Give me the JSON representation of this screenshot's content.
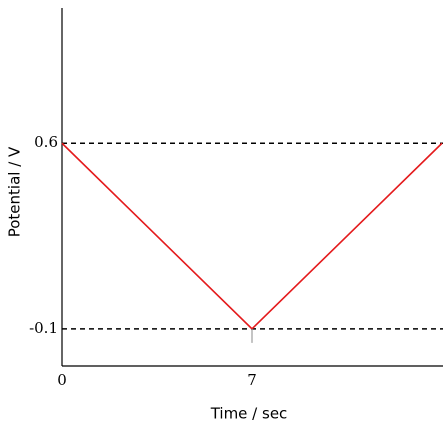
{
  "chart_data": {
    "type": "line",
    "x_label": "Time / sec",
    "y_label": "Potential / V",
    "x": [
      0,
      7,
      14
    ],
    "series": [
      {
        "color": "#e41a1c",
        "values": [
          0.6,
          -0.1,
          0.6
        ]
      }
    ],
    "xlim": [
      0,
      14
    ],
    "xticks": [
      0,
      7
    ],
    "ylim": [
      -0.24,
      1.11
    ],
    "yticks": [
      -0.1,
      0.6
    ],
    "grid": true
  }
}
